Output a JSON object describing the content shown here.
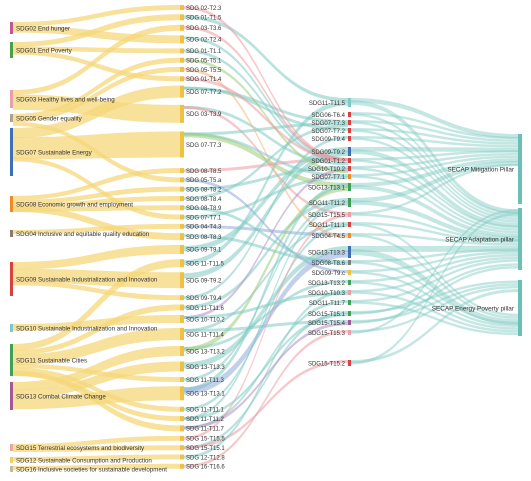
{
  "colors": {
    "yellow": "#f5d77a",
    "teal": "#7fcac3",
    "green": "#9ccc7a",
    "pink": "#ee9aa3",
    "purple": "#b48ec9",
    "blue": "#8fa9d9",
    "orange": "#f3b27a"
  },
  "left_nodes": [
    {
      "label": "SDG02 End hunger",
      "color": "#c05a8f"
    },
    {
      "label": "SDG01 End Poverty",
      "color": "#4aa04a"
    },
    {
      "label": "SDG03 Healthy lives and well-being",
      "color": "#e8a0a8"
    },
    {
      "label": "SDG05 Gender equality",
      "color": "#b0a090"
    },
    {
      "label": "SDG07 Sustainable Energy",
      "color": "#3f6fb5"
    },
    {
      "label": "SDG08 Economic growth and employment",
      "color": "#f08a2a"
    },
    {
      "label": "SDG04 Inclusive and equitable quality education",
      "color": "#8a7a70"
    },
    {
      "label": "SDG09 Sustainable Industrialization and Innovation",
      "color": "#d9413e"
    },
    {
      "label": "SDG10 Sustainable Industrialization and Innovation",
      "color": "#7fc8c8"
    },
    {
      "label": "SDG11 Sustainable Cities",
      "color": "#3fa05a"
    },
    {
      "label": "SDG13 Combat Climate Change",
      "color": "#a05a9a"
    },
    {
      "label": "SDG15 Terrestrial ecosystems and biodiversity",
      "color": "#e8a8a0"
    },
    {
      "label": "SDG12 Sustainable Consumption and Production",
      "color": "#f0d060"
    },
    {
      "label": "SDG16 Inclusive societies for sustainable development",
      "color": "#c0b8a8"
    }
  ],
  "middle_nodes": [
    "SDG 02-T2.3",
    "SDG 01-T1.5",
    "SDG 03-T3.6",
    "SDG 02-T2.4",
    "SDG 01-T1.1",
    "SDG 05-T5.1",
    "SDG 05-T5.5",
    "SDG 01-T1.4",
    "SDG 07-T7.2",
    "SDG 03-T3.9",
    "SDG 07-T7.3",
    "SDG 08-T8.5",
    "SDG 05-T5.a",
    "SDG 08-T8.2",
    "SDG 08-T8.4",
    "SDG 08-T8.9",
    "SDG 07-T7.1",
    "SDG 04-T4.3",
    "SDG 08-T8.3",
    "SDG 09-T9.1",
    "SDG 11-T11.5",
    "SDG 09-T9.2",
    "SDG 09-T9.4",
    "SDG 11-T11.6",
    "SDG 10-T10.2",
    "SDG 11-T11.4",
    "SDG 13-T13.2",
    "SDG 13-T13.3",
    "SDG 11-T11.3",
    "SDG 13-T13.1",
    "SDG 11-T11.1",
    "SDG 11-T11.2",
    "SDG 11-T11.7",
    "SDG 15-T15.5",
    "SDG 15-T15.1",
    "SDG 12-T12.8",
    "SDG 16-T16.6"
  ],
  "right_targets": [
    "SDG11-T11.5",
    "SDG06-T6.4",
    "SDG07-T7.3",
    "SDG07-T7.2",
    "SDG09-T9.4",
    "SDG09-T9.2",
    "SDG01-T1.2",
    "SDG10-T10.2",
    "SDG07-T7.1",
    "SDG13-T13.1",
    "SDG11-T11.2",
    "SDG15-T15.5",
    "SDG11-T11.1",
    "SDG04-T4.5",
    "SDG13-T13.3",
    "SDG08-T8.6",
    "SDG09-T9.c",
    "SDG13-T13.2",
    "SDG10-T10.3",
    "SDG11-T11.7",
    "SDG15-T15.1",
    "SDG15-T15.4",
    "SDG15-T15.3",
    "SDG15-T15.2"
  ],
  "pillars": [
    "SECAP Mitigation Pillar",
    "SECAP Adaptation pillar",
    "SECAP Energy Poverty pillar"
  ]
}
